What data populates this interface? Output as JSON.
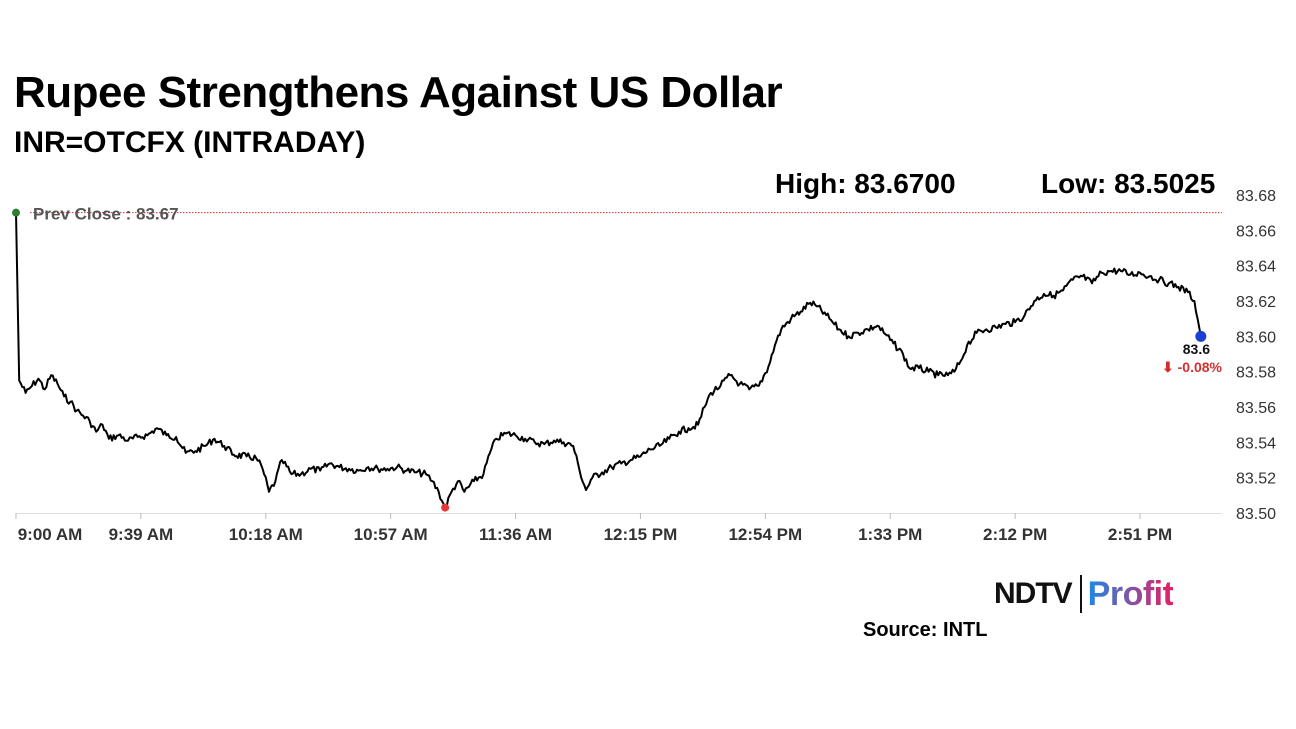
{
  "header": {
    "title": "Rupee Strengthens Against US Dollar",
    "subtitle": "INR=OTCFX (INTRADAY)",
    "high": "High: 83.6700",
    "low": "Low: 83.5025"
  },
  "logo": {
    "ndtv": "NDTV",
    "profit": "Profit",
    "colors": {
      "ndtv": "#111111",
      "profit_start": "#1e88e5",
      "profit_end": "#e91e63",
      "ndtv_dot": "#d32f2f"
    }
  },
  "source": "Source: INTL",
  "chart_data": {
    "type": "line",
    "title": "",
    "xlabel": "",
    "ylabel": "",
    "ylim": [
      83.5,
      83.68
    ],
    "yticks": [
      "83.50",
      "83.52",
      "83.54",
      "83.56",
      "83.58",
      "83.60",
      "83.62",
      "83.64",
      "83.66",
      "83.68"
    ],
    "xticks": [
      "9:00 AM",
      "9:39 AM",
      "10:18 AM",
      "10:57 AM",
      "11:36 AM",
      "12:15 PM",
      "12:54 PM",
      "1:33 PM",
      "2:12 PM",
      "2:51 PM"
    ],
    "x_start": "9:00 AM",
    "x_end": "3:30 PM",
    "prev_close": 83.67,
    "prev_close_label": "Prev Close : 83.67",
    "last_value_label": "83.6",
    "change_label": "⬇ -0.08%",
    "colors": {
      "line": "#000000",
      "prev_close": "#d32f2f",
      "start_dot": "#2e7d32",
      "low_dot": "#e53935",
      "last_dot": "#1a3fd1",
      "change": "#d32f2f"
    },
    "series": [
      {
        "values": [
          [
            "9:00 AM",
            83.67
          ],
          [
            "9:01 AM",
            83.575
          ],
          [
            "9:03 AM",
            83.568
          ],
          [
            "9:05 AM",
            83.572
          ],
          [
            "9:07 AM",
            83.576
          ],
          [
            "9:09 AM",
            83.57
          ],
          [
            "9:11 AM",
            83.578
          ],
          [
            "9:13 AM",
            83.573
          ],
          [
            "9:15 AM",
            83.566
          ],
          [
            "9:17 AM",
            83.563
          ],
          [
            "9:19 AM",
            83.558
          ],
          [
            "9:21 AM",
            83.555
          ],
          [
            "9:23 AM",
            83.552
          ],
          [
            "9:25 AM",
            83.546
          ],
          [
            "9:27 AM",
            83.55
          ],
          [
            "9:29 AM",
            83.542
          ],
          [
            "9:32 AM",
            83.544
          ],
          [
            "9:35 AM",
            83.541
          ],
          [
            "9:38 AM",
            83.543
          ],
          [
            "9:41 AM",
            83.544
          ],
          [
            "9:44 AM",
            83.548
          ],
          [
            "9:47 AM",
            83.544
          ],
          [
            "9:50 AM",
            83.543
          ],
          [
            "9:53 AM",
            83.534
          ],
          [
            "9:56 AM",
            83.535
          ],
          [
            "9:59 AM",
            83.538
          ],
          [
            "10:02 AM",
            83.542
          ],
          [
            "10:05 AM",
            83.538
          ],
          [
            "10:08 AM",
            83.533
          ],
          [
            "10:12 AM",
            83.532
          ],
          [
            "10:15 AM",
            83.531
          ],
          [
            "10:17 AM",
            83.525
          ],
          [
            "10:19 AM",
            83.512
          ],
          [
            "10:21 AM",
            83.518
          ],
          [
            "10:23 AM",
            83.53
          ],
          [
            "10:26 AM",
            83.522
          ],
          [
            "10:29 AM",
            83.522
          ],
          [
            "10:32 AM",
            83.525
          ],
          [
            "10:35 AM",
            83.524
          ],
          [
            "10:38 AM",
            83.528
          ],
          [
            "10:41 AM",
            83.526
          ],
          [
            "10:44 AM",
            83.525
          ],
          [
            "10:47 AM",
            83.524
          ],
          [
            "10:50 AM",
            83.526
          ],
          [
            "10:53 AM",
            83.525
          ],
          [
            "10:56 AM",
            83.525
          ],
          [
            "10:59 AM",
            83.526
          ],
          [
            "11:02 AM",
            83.524
          ],
          [
            "11:05 AM",
            83.523
          ],
          [
            "11:08 AM",
            83.522
          ],
          [
            "11:10 AM",
            83.518
          ],
          [
            "11:12 AM",
            83.512
          ],
          [
            "11:14 AM",
            83.5025
          ],
          [
            "11:16 AM",
            83.512
          ],
          [
            "11:18 AM",
            83.518
          ],
          [
            "11:20 AM",
            83.512
          ],
          [
            "11:23 AM",
            83.518
          ],
          [
            "11:26 AM",
            83.522
          ],
          [
            "11:28 AM",
            83.534
          ],
          [
            "11:30 AM",
            83.542
          ],
          [
            "11:33 AM",
            83.545
          ],
          [
            "11:36 AM",
            83.544
          ],
          [
            "11:39 AM",
            83.542
          ],
          [
            "11:42 AM",
            83.54
          ],
          [
            "11:45 AM",
            83.539
          ],
          [
            "11:48 AM",
            83.541
          ],
          [
            "11:51 AM",
            83.54
          ],
          [
            "11:54 AM",
            83.538
          ],
          [
            "11:56 AM",
            83.524
          ],
          [
            "11:58 AM",
            83.513
          ],
          [
            "12:00 PM",
            83.52
          ],
          [
            "12:03 PM",
            83.523
          ],
          [
            "12:06 PM",
            83.526
          ],
          [
            "12:09 PM",
            83.528
          ],
          [
            "12:12 PM",
            83.53
          ],
          [
            "12:15 PM",
            83.532
          ],
          [
            "12:18 PM",
            83.536
          ],
          [
            "12:21 PM",
            83.538
          ],
          [
            "12:24 PM",
            83.542
          ],
          [
            "12:27 PM",
            83.546
          ],
          [
            "12:30 PM",
            83.548
          ],
          [
            "12:33 PM",
            83.55
          ],
          [
            "12:35 PM",
            83.56
          ],
          [
            "12:37 PM",
            83.568
          ],
          [
            "12:40 PM",
            83.572
          ],
          [
            "12:43 PM",
            83.578
          ],
          [
            "12:46 PM",
            83.573
          ],
          [
            "12:49 PM",
            83.57
          ],
          [
            "12:52 PM",
            83.572
          ],
          [
            "12:55 PM",
            83.583
          ],
          [
            "12:57 PM",
            83.595
          ],
          [
            "12:59 PM",
            83.604
          ],
          [
            "1:02 PM",
            83.61
          ],
          [
            "1:05 PM",
            83.614
          ],
          [
            "1:08 PM",
            83.619
          ],
          [
            "1:10 PM",
            83.617
          ],
          [
            "1:13 PM",
            83.612
          ],
          [
            "1:15 PM",
            83.608
          ],
          [
            "1:17 PM",
            83.604
          ],
          [
            "1:20 PM",
            83.6
          ],
          [
            "1:23 PM",
            83.602
          ],
          [
            "1:26 PM",
            83.604
          ],
          [
            "1:29 PM",
            83.606
          ],
          [
            "1:31 PM",
            83.602
          ],
          [
            "1:34 PM",
            83.596
          ],
          [
            "1:37 PM",
            83.59
          ],
          [
            "1:39 PM",
            83.582
          ],
          [
            "1:42 PM",
            83.582
          ],
          [
            "1:45 PM",
            83.58
          ],
          [
            "1:48 PM",
            83.578
          ],
          [
            "1:51 PM",
            83.578
          ],
          [
            "1:53 PM",
            83.58
          ],
          [
            "1:55 PM",
            83.586
          ],
          [
            "1:57 PM",
            83.595
          ],
          [
            "2:00 PM",
            83.602
          ],
          [
            "2:03 PM",
            83.604
          ],
          [
            "2:06 PM",
            83.605
          ],
          [
            "2:09 PM",
            83.607
          ],
          [
            "2:12 PM",
            83.608
          ],
          [
            "2:15 PM",
            83.612
          ],
          [
            "2:18 PM",
            83.62
          ],
          [
            "2:21 PM",
            83.624
          ],
          [
            "2:24 PM",
            83.623
          ],
          [
            "2:27 PM",
            83.626
          ],
          [
            "2:30 PM",
            83.632
          ],
          [
            "2:33 PM",
            83.634
          ],
          [
            "2:36 PM",
            83.63
          ],
          [
            "2:39 PM",
            83.636
          ],
          [
            "2:42 PM",
            83.637
          ],
          [
            "2:45 PM",
            83.637
          ],
          [
            "2:48 PM",
            83.635
          ],
          [
            "2:51 PM",
            83.636
          ],
          [
            "2:54 PM",
            83.634
          ],
          [
            "2:57 PM",
            83.632
          ],
          [
            "3:00 PM",
            83.63
          ],
          [
            "3:03 PM",
            83.628
          ],
          [
            "3:06 PM",
            83.625
          ],
          [
            "3:08 PM",
            83.62
          ],
          [
            "3:09 PM",
            83.61
          ],
          [
            "3:10 PM",
            83.6
          ]
        ]
      }
    ]
  }
}
